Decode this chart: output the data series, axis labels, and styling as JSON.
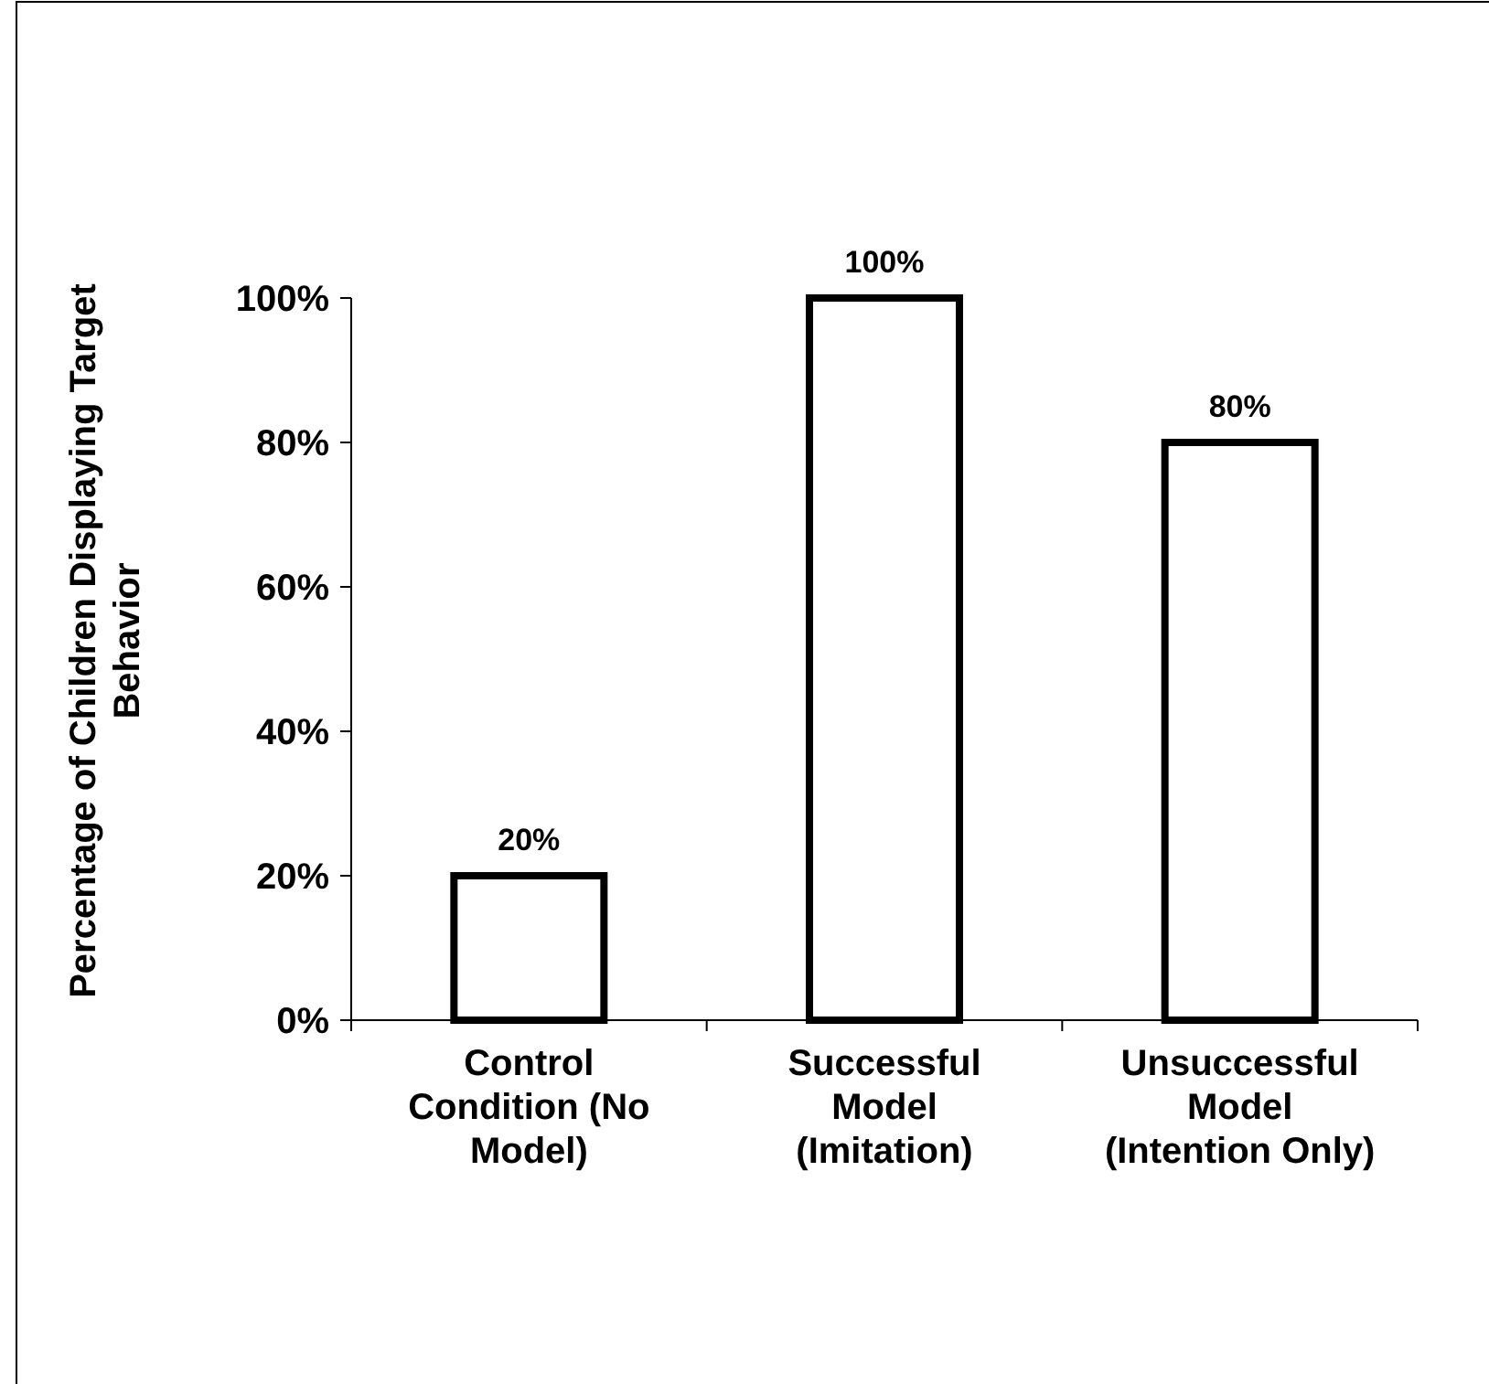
{
  "chart_data": {
    "type": "bar",
    "ylabel": "Percentage of Children Displaying Target Behavior",
    "categories": [
      "Control Condition (No Model)",
      "Successful Model (Imitation)",
      "Unsuccessful Model (Intention Only)"
    ],
    "values": [
      20,
      100,
      80
    ],
    "value_labels": [
      "20%",
      "100%",
      "80%"
    ],
    "color": "#ffffff",
    "ylim": [
      0,
      100
    ],
    "yticks": [
      {
        "value": 0,
        "label": "0%"
      },
      {
        "value": 20,
        "label": "20%"
      },
      {
        "value": 40,
        "label": "40%"
      },
      {
        "value": 60,
        "label": "60%"
      },
      {
        "value": 80,
        "label": "80%"
      },
      {
        "value": 100,
        "label": "100%"
      }
    ],
    "grid": false
  }
}
